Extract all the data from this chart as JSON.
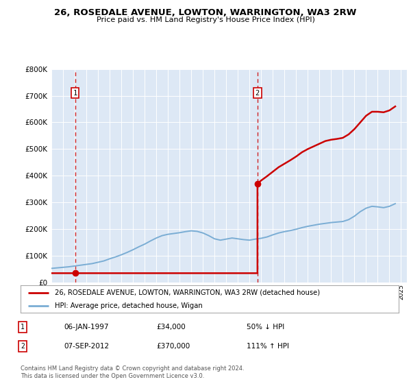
{
  "title": "26, ROSEDALE AVENUE, LOWTON, WARRINGTON, WA3 2RW",
  "subtitle": "Price paid vs. HM Land Registry's House Price Index (HPI)",
  "legend_line1": "26, ROSEDALE AVENUE, LOWTON, WARRINGTON, WA3 2RW (detached house)",
  "legend_line2": "HPI: Average price, detached house, Wigan",
  "annotation1_date": "06-JAN-1997",
  "annotation1_price": "£34,000",
  "annotation1_hpi": "50% ↓ HPI",
  "annotation2_date": "07-SEP-2012",
  "annotation2_price": "£370,000",
  "annotation2_hpi": "111% ↑ HPI",
  "footnote": "Contains HM Land Registry data © Crown copyright and database right 2024.\nThis data is licensed under the Open Government Licence v3.0.",
  "sale1_x": 1997.03,
  "sale1_y": 34000,
  "sale2_x": 2012.68,
  "sale2_y": 370000,
  "property_color": "#cc0000",
  "hpi_color": "#7aadd4",
  "vline_color": "#cc0000",
  "background_color": "#dde8f5",
  "ylim": [
    0,
    800000
  ],
  "xlim": [
    1995,
    2025.5
  ],
  "hpi_x": [
    1995.0,
    1995.5,
    1996.0,
    1996.5,
    1997.0,
    1997.5,
    1998.0,
    1998.5,
    1999.0,
    1999.5,
    2000.0,
    2000.5,
    2001.0,
    2001.5,
    2002.0,
    2002.5,
    2003.0,
    2003.5,
    2004.0,
    2004.5,
    2005.0,
    2005.5,
    2006.0,
    2006.5,
    2007.0,
    2007.5,
    2008.0,
    2008.5,
    2009.0,
    2009.5,
    2010.0,
    2010.5,
    2011.0,
    2011.5,
    2012.0,
    2012.5,
    2013.0,
    2013.5,
    2014.0,
    2014.5,
    2015.0,
    2015.5,
    2016.0,
    2016.5,
    2017.0,
    2017.5,
    2018.0,
    2018.5,
    2019.0,
    2019.5,
    2020.0,
    2020.5,
    2021.0,
    2021.5,
    2022.0,
    2022.5,
    2023.0,
    2023.5,
    2024.0,
    2024.5
  ],
  "hpi_y": [
    52000,
    54000,
    56000,
    58000,
    61000,
    64000,
    67000,
    70000,
    75000,
    80000,
    88000,
    95000,
    103000,
    112000,
    122000,
    133000,
    143000,
    155000,
    166000,
    175000,
    180000,
    183000,
    186000,
    190000,
    193000,
    191000,
    185000,
    175000,
    163000,
    158000,
    162000,
    166000,
    163000,
    160000,
    158000,
    162000,
    165000,
    170000,
    178000,
    185000,
    190000,
    194000,
    199000,
    205000,
    210000,
    214000,
    218000,
    221000,
    224000,
    226000,
    228000,
    235000,
    248000,
    265000,
    278000,
    285000,
    283000,
    280000,
    285000,
    295000
  ],
  "prop_x": [
    1995.0,
    1997.03,
    1997.03,
    2012.68,
    2012.68,
    2013.0,
    2013.5,
    2014.0,
    2014.5,
    2015.0,
    2015.5,
    2016.0,
    2016.5,
    2017.0,
    2017.5,
    2018.0,
    2018.5,
    2019.0,
    2019.5,
    2020.0,
    2020.5,
    2021.0,
    2021.5,
    2022.0,
    2022.5,
    2023.0,
    2023.5,
    2024.0,
    2024.5
  ],
  "prop_y": [
    34000,
    34000,
    34000,
    34000,
    370000,
    382000,
    398000,
    415000,
    432000,
    445000,
    458000,
    472000,
    488000,
    500000,
    510000,
    520000,
    530000,
    535000,
    538000,
    542000,
    555000,
    575000,
    600000,
    625000,
    640000,
    640000,
    638000,
    645000,
    660000
  ]
}
